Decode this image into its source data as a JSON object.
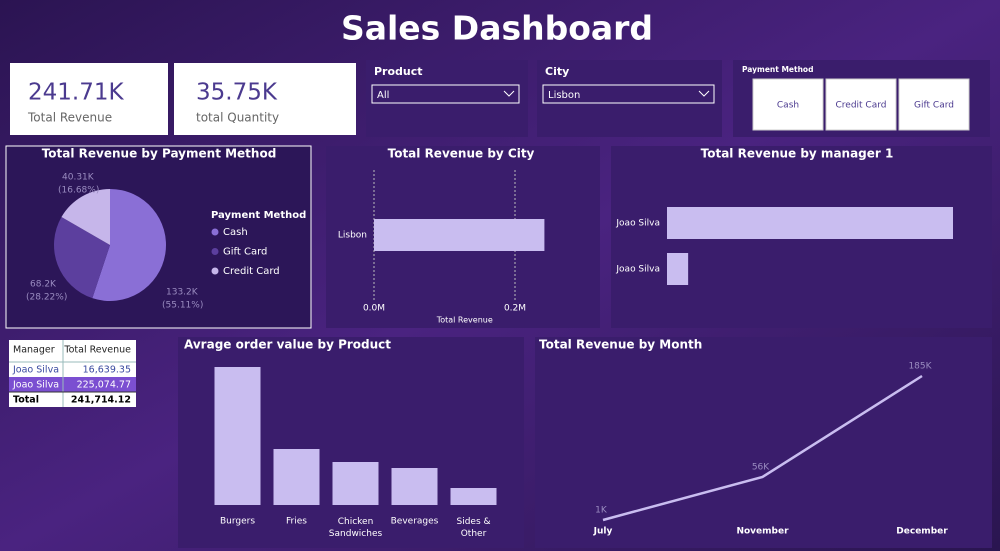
{
  "title": "Sales Dashboard",
  "cards": [
    {
      "value": "241.71K",
      "label": "Total Revenue"
    },
    {
      "value": "35.75K",
      "label": "total Quantity"
    }
  ],
  "slicers": [
    {
      "label": "Product",
      "selected": "All"
    },
    {
      "label": "City",
      "selected": "Lisbon"
    }
  ],
  "payment_buttons": {
    "label": "Payment Method",
    "options": [
      "Cash",
      "Credit Card",
      "Gift Card"
    ]
  },
  "table": {
    "header": [
      "Manager",
      "Total Revenue"
    ],
    "rows": [
      [
        "Joao Silva",
        "16,639.35"
      ],
      [
        "Joao Silva",
        "225,074.77"
      ],
      [
        "Total",
        "241,714.12"
      ]
    ]
  },
  "chart_data": [
    {
      "type": "pie",
      "title": "Total Revenue by Payment Method",
      "legend_title": "Payment Method",
      "categories": [
        "Cash",
        "Gift Card",
        "Credit Card"
      ],
      "values": [
        133200,
        68200,
        40310
      ],
      "value_labels": [
        "133.2K",
        "68.2K",
        "40.31K"
      ],
      "percent_labels": [
        "(55.11%)",
        "(28.22%)",
        "(16.68%)"
      ],
      "colors": [
        "#8a6fd6",
        "#5c3f9e",
        "#c6b6ea"
      ]
    },
    {
      "type": "hbar",
      "title": "Total Revenue by City",
      "categories": [
        "Lisbon"
      ],
      "values": [
        241714.12
      ],
      "xlim": [
        0,
        300000
      ],
      "xticks": [
        {
          "value": 0,
          "label": "0.0M"
        },
        {
          "value": 200000,
          "label": "0.2M"
        }
      ],
      "xlabel": "Total Revenue",
      "grid": true,
      "color": "#c9bdf0"
    },
    {
      "type": "hbar",
      "title": "Total Revenue by manager 1",
      "categories": [
        "Joao Silva",
        "Joao Silva"
      ],
      "values": [
        225074.77,
        16639.35
      ],
      "color": "#c9bdf0"
    },
    {
      "type": "bar",
      "title": "Avrage order value by Product",
      "categories": [
        "Burgers",
        "Fries",
        "Chicken Sandwiches",
        "Beverages",
        "Sides & Other"
      ],
      "values": [
        138,
        56,
        43,
        37,
        17
      ],
      "color": "#c9bdf0"
    },
    {
      "type": "line",
      "title": "Total Revenue by Month",
      "categories": [
        "July",
        "November",
        "December"
      ],
      "values": [
        1000,
        56000,
        185000
      ],
      "value_labels": [
        "1K",
        "56K",
        "185K"
      ],
      "color": "#c9bdf0"
    }
  ]
}
